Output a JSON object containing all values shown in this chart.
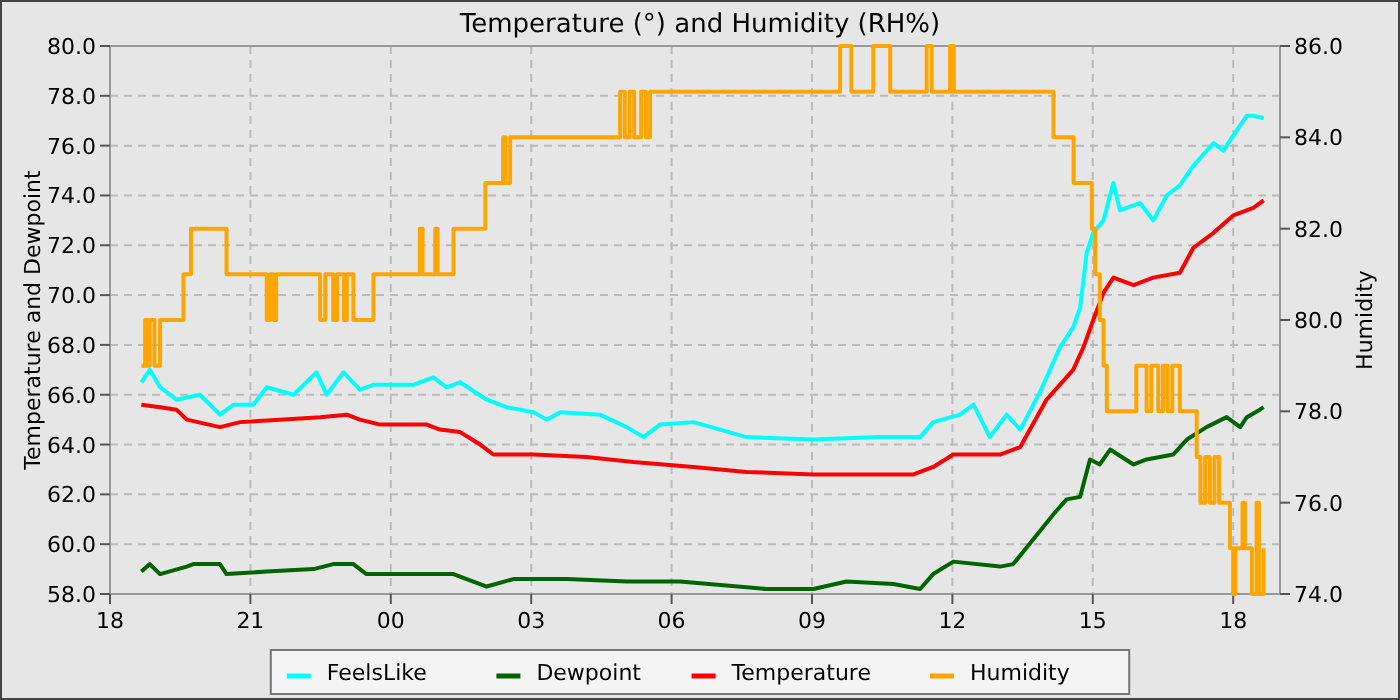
{
  "chart_data": {
    "type": "line",
    "title": "Temperature (°) and Humidity (RH%)",
    "ylabel": "Temperature and Dewpoint",
    "y2label": "Humidity",
    "xlim": [
      18,
      43
    ],
    "xticks": [
      {
        "value": 18,
        "label": "18"
      },
      {
        "value": 21,
        "label": "21"
      },
      {
        "value": 24,
        "label": "00"
      },
      {
        "value": 27,
        "label": "03"
      },
      {
        "value": 30,
        "label": "06"
      },
      {
        "value": 33,
        "label": "09"
      },
      {
        "value": 36,
        "label": "12"
      },
      {
        "value": 39,
        "label": "15"
      },
      {
        "value": 42,
        "label": "18"
      }
    ],
    "ylim": [
      58,
      80
    ],
    "yticks": [
      {
        "value": 58,
        "label": "58.0"
      },
      {
        "value": 60,
        "label": "60.0"
      },
      {
        "value": 62,
        "label": "62.0"
      },
      {
        "value": 64,
        "label": "64.0"
      },
      {
        "value": 66,
        "label": "66.0"
      },
      {
        "value": 68,
        "label": "68.0"
      },
      {
        "value": 70,
        "label": "70.0"
      },
      {
        "value": 72,
        "label": "72.0"
      },
      {
        "value": 74,
        "label": "74.0"
      },
      {
        "value": 76,
        "label": "76.0"
      },
      {
        "value": 78,
        "label": "78.0"
      },
      {
        "value": 80,
        "label": "80.0"
      }
    ],
    "y2lim": [
      74,
      86
    ],
    "y2ticks": [
      {
        "value": 74,
        "label": "74.0"
      },
      {
        "value": 76,
        "label": "76.0"
      },
      {
        "value": 78,
        "label": "78.0"
      },
      {
        "value": 80,
        "label": "80.0"
      },
      {
        "value": 82,
        "label": "82.0"
      },
      {
        "value": 84,
        "label": "84.0"
      },
      {
        "value": 86,
        "label": "86.0"
      }
    ],
    "grid": true,
    "legend": "bottom",
    "marker": "none",
    "line_style": "solid",
    "series": [
      {
        "name": "FeelsLike",
        "color": "#00ffff",
        "x": [
          18.67,
          18.85,
          19.07,
          19.42,
          19.92,
          20.35,
          20.64,
          21.06,
          21.35,
          21.92,
          22.41,
          22.63,
          22.99,
          23.34,
          23.63,
          24.48,
          24.91,
          25.19,
          25.48,
          26.05,
          26.47,
          27.05,
          27.33,
          27.62,
          28.47,
          29.04,
          29.4,
          29.75,
          30.47,
          31.6,
          33.03,
          34.45,
          35.31,
          35.59,
          36.16,
          36.45,
          36.8,
          37.16,
          37.45,
          37.87,
          38.3,
          38.58,
          38.73,
          38.87,
          39.01,
          39.23,
          39.44,
          39.58,
          40.01,
          40.29,
          40.58,
          40.86,
          41.15,
          41.58,
          41.79,
          42.0,
          42.29,
          42.43,
          42.65
        ],
        "values": [
          66.5,
          67.0,
          66.3,
          65.8,
          66.0,
          65.2,
          65.6,
          65.6,
          66.3,
          66.0,
          66.9,
          66.0,
          66.9,
          66.2,
          66.4,
          66.4,
          66.7,
          66.3,
          66.5,
          65.8,
          65.5,
          65.3,
          65.0,
          65.3,
          65.2,
          64.7,
          64.3,
          64.8,
          64.9,
          64.3,
          64.2,
          64.3,
          64.3,
          64.9,
          65.2,
          65.6,
          64.3,
          65.2,
          64.6,
          66.1,
          67.9,
          68.7,
          69.5,
          71.7,
          72.5,
          73.0,
          74.5,
          73.4,
          73.7,
          73.0,
          74.0,
          74.4,
          75.2,
          76.1,
          75.8,
          76.4,
          77.2,
          77.2,
          77.1
        ]
      },
      {
        "name": "Dewpoint",
        "color": "#006400",
        "x": [
          18.67,
          18.85,
          19.07,
          19.64,
          19.78,
          20.35,
          20.49,
          21.35,
          22.35,
          22.77,
          23.2,
          23.48,
          24.2,
          24.77,
          25.34,
          25.62,
          26.05,
          26.62,
          27.76,
          29.04,
          29.89,
          30.18,
          32.03,
          33.03,
          33.74,
          34.74,
          35.31,
          35.59,
          36.02,
          37.02,
          37.3,
          37.73,
          38.16,
          38.44,
          38.73,
          38.94,
          39.15,
          39.37,
          39.87,
          40.15,
          40.72,
          41.01,
          41.43,
          41.86,
          42.15,
          42.29,
          42.57,
          42.65
        ],
        "values": [
          58.9,
          59.2,
          58.8,
          59.1,
          59.2,
          59.2,
          58.8,
          58.9,
          59.0,
          59.2,
          59.2,
          58.8,
          58.8,
          58.8,
          58.8,
          58.6,
          58.3,
          58.6,
          58.6,
          58.5,
          58.5,
          58.5,
          58.2,
          58.2,
          58.5,
          58.4,
          58.2,
          58.8,
          59.3,
          59.1,
          59.2,
          60.2,
          61.2,
          61.8,
          61.9,
          63.4,
          63.2,
          63.8,
          63.2,
          63.4,
          63.6,
          64.2,
          64.7,
          65.1,
          64.7,
          65.1,
          65.4,
          65.5
        ]
      },
      {
        "name": "Temperature",
        "color": "#ff0000",
        "x": [
          18.67,
          19.07,
          19.42,
          19.64,
          20.35,
          20.78,
          21.63,
          22.49,
          23.06,
          23.34,
          23.77,
          24.77,
          25.05,
          25.48,
          25.91,
          26.19,
          27.05,
          28.18,
          29.18,
          30.47,
          31.6,
          33.03,
          35.17,
          35.59,
          36.02,
          37.02,
          37.45,
          38.01,
          38.58,
          38.8,
          39.01,
          39.23,
          39.44,
          39.87,
          40.29,
          40.86,
          41.15,
          41.58,
          42.0,
          42.43,
          42.65
        ],
        "values": [
          65.6,
          65.5,
          65.4,
          65.0,
          64.7,
          64.9,
          65.0,
          65.1,
          65.2,
          65.0,
          64.8,
          64.8,
          64.6,
          64.5,
          64.0,
          63.6,
          63.6,
          63.5,
          63.3,
          63.1,
          62.9,
          62.8,
          62.8,
          63.1,
          63.6,
          63.6,
          63.9,
          65.8,
          67.0,
          67.9,
          69.0,
          70.1,
          70.7,
          70.4,
          70.7,
          70.9,
          71.9,
          72.5,
          73.2,
          73.5,
          73.8
        ]
      },
      {
        "name": "Humidity",
        "type": "step",
        "axis": "y2",
        "color": "#ffa500",
        "x": [
          18.67,
          18.75,
          18.8,
          18.85,
          18.95,
          19.07,
          19.57,
          19.73,
          20.49,
          21.35,
          21.42,
          21.5,
          21.55,
          22.49,
          22.6,
          22.77,
          22.85,
          23.0,
          23.06,
          23.2,
          23.63,
          24.62,
          24.68,
          24.95,
          25.0,
          25.34,
          26.02,
          26.4,
          26.45,
          26.55,
          28.9,
          29.0,
          29.1,
          29.2,
          29.35,
          29.45,
          29.54,
          33.6,
          33.84,
          34.31,
          34.67,
          35.45,
          35.56,
          35.95,
          36.03,
          38.16,
          38.59,
          38.98,
          39.05,
          39.15,
          39.23,
          39.3,
          39.93,
          40.15,
          40.25,
          40.4,
          40.5,
          40.6,
          40.7,
          40.86,
          41.22,
          41.3,
          41.4,
          41.5,
          41.6,
          41.7,
          41.93,
          42.0,
          42.05,
          42.2,
          42.25,
          42.4,
          42.5,
          42.55,
          42.65
        ],
        "values": [
          79,
          80,
          79,
          80,
          79,
          80,
          81,
          82,
          81,
          80,
          81,
          80,
          81,
          80,
          81,
          80,
          81,
          80,
          81,
          80,
          81,
          82,
          81,
          82,
          81,
          82,
          83,
          84,
          83,
          84,
          85,
          84,
          85,
          84,
          85,
          84,
          85,
          86,
          85,
          86,
          85,
          86,
          85,
          86,
          85,
          84,
          83,
          82,
          81,
          80,
          79,
          78,
          79,
          78,
          79,
          78,
          79,
          78,
          79,
          78,
          77,
          76,
          77,
          76,
          77,
          76,
          75,
          74,
          75,
          76,
          75,
          74,
          76,
          74,
          75
        ]
      }
    ]
  }
}
